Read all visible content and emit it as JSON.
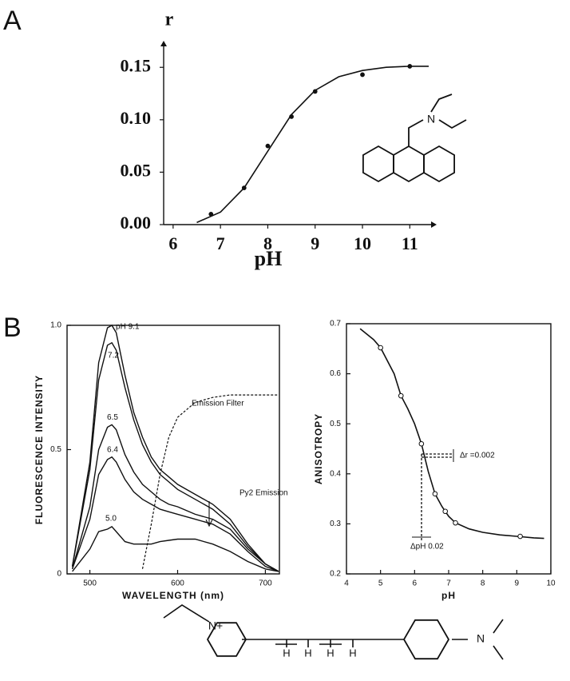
{
  "panels": [
    "A",
    "B"
  ],
  "structures": {
    "a": [
      "N"
    ],
    "b": [
      "N+",
      "H",
      "H",
      "H",
      "H",
      "N"
    ]
  },
  "chart_data": [
    {
      "type": "scatter",
      "frame": "axes",
      "xlabel": "pH",
      "ylabel": "r",
      "xlim": [
        5.8,
        11.45
      ],
      "ylim": [
        0,
        0.17
      ],
      "xticks": [
        6,
        7,
        8,
        9,
        10,
        11
      ],
      "yticks": [
        {
          "value": 0,
          "label": "0.00"
        },
        {
          "value": 0.05,
          "label": "0.05"
        },
        {
          "value": 0.1,
          "label": "0.10"
        },
        {
          "value": 0.15,
          "label": "0.15"
        }
      ],
      "x": [
        6.8,
        7.5,
        8,
        8.5,
        9,
        10,
        11
      ],
      "values": [
        0.01,
        0.035,
        0.075,
        0.103,
        0.127,
        0.143,
        0.151
      ],
      "curve": {
        "x": [
          6.5,
          7,
          7.5,
          8,
          8.5,
          9,
          9.5,
          10,
          10.5,
          11,
          11.4
        ],
        "values": [
          0.002,
          0.012,
          0.035,
          0.07,
          0.105,
          0.128,
          0.141,
          0.147,
          0.15,
          0.151,
          0.151
        ]
      },
      "color": "#111111"
    },
    {
      "type": "line",
      "frame": "box",
      "xlabel": "WAVELENGTH (nm)",
      "ylabel": "FLUORESCENCE  INTENSITY",
      "xlim": [
        474,
        716
      ],
      "ylim": [
        0,
        1.0
      ],
      "xticks": [
        500,
        600,
        700
      ],
      "yticks": [
        0,
        0.5,
        {
          "value": 1.0,
          "label": "1.0"
        }
      ],
      "x": [
        480,
        500,
        510,
        520,
        525,
        530,
        540,
        550,
        560,
        570,
        580,
        590,
        600,
        620,
        640,
        660,
        680,
        700,
        715
      ],
      "series": [
        {
          "name": "pH 9.1",
          "color": "#111111",
          "values": [
            0.03,
            0.45,
            0.85,
            0.99,
            1.0,
            0.97,
            0.8,
            0.65,
            0.55,
            0.47,
            0.42,
            0.39,
            0.36,
            0.32,
            0.28,
            0.22,
            0.12,
            0.04,
            0.01
          ]
        },
        {
          "name": "7.2",
          "color": "#111111",
          "values": [
            0.03,
            0.42,
            0.78,
            0.92,
            0.93,
            0.9,
            0.75,
            0.62,
            0.52,
            0.45,
            0.4,
            0.37,
            0.34,
            0.3,
            0.26,
            0.2,
            0.11,
            0.04,
            0.01
          ]
        },
        {
          "name": "6.5",
          "color": "#111111",
          "values": [
            0.02,
            0.27,
            0.5,
            0.59,
            0.6,
            0.58,
            0.48,
            0.41,
            0.36,
            0.33,
            0.3,
            0.28,
            0.27,
            0.24,
            0.22,
            0.18,
            0.1,
            0.04,
            0.01
          ]
        },
        {
          "name": "6.4",
          "color": "#111111",
          "values": [
            0.02,
            0.22,
            0.4,
            0.46,
            0.47,
            0.45,
            0.38,
            0.33,
            0.3,
            0.28,
            0.26,
            0.25,
            0.24,
            0.22,
            0.2,
            0.16,
            0.09,
            0.03,
            0.01
          ]
        },
        {
          "name": "5.0",
          "color": "#111111",
          "values": [
            0.01,
            0.1,
            0.17,
            0.18,
            0.19,
            0.17,
            0.13,
            0.12,
            0.12,
            0.12,
            0.13,
            0.135,
            0.14,
            0.14,
            0.12,
            0.09,
            0.05,
            0.02,
            0.01
          ]
        },
        {
          "name": "Emission Filter",
          "color": "#111111",
          "dashed": true,
          "values": [
            null,
            null,
            null,
            null,
            null,
            null,
            null,
            null,
            0.02,
            0.2,
            0.4,
            0.55,
            0.63,
            0.69,
            0.71,
            0.72,
            0.72,
            0.72,
            0.72
          ]
        }
      ],
      "annotations": [
        "Py2 Emission"
      ]
    },
    {
      "type": "scatter",
      "frame": "box",
      "xlabel": "pH",
      "ylabel": "ANISOTROPY",
      "xlim": [
        4,
        10
      ],
      "ylim": [
        0.2,
        0.7
      ],
      "xticks": [
        4,
        5,
        6,
        7,
        8,
        9,
        10
      ],
      "yticks": [
        0.2,
        0.3,
        0.4,
        0.5,
        0.6,
        0.7
      ],
      "x": [
        5,
        5.6,
        6.2,
        6.6,
        6.9,
        7.2,
        9.1
      ],
      "values": [
        0.652,
        0.556,
        0.46,
        0.36,
        0.325,
        0.302,
        0.275
      ],
      "curve": {
        "x": [
          4.4,
          4.8,
          5,
          5.4,
          5.6,
          5.8,
          6,
          6.2,
          6.4,
          6.6,
          6.8,
          7,
          7.2,
          7.6,
          8,
          8.5,
          9,
          9.5,
          9.8
        ],
        "values": [
          0.69,
          0.668,
          0.652,
          0.6,
          0.556,
          0.53,
          0.5,
          0.46,
          0.405,
          0.36,
          0.335,
          0.315,
          0.302,
          0.29,
          0.283,
          0.278,
          0.275,
          0.272,
          0.271
        ]
      },
      "color": "#111111",
      "markers": "open",
      "annotations": [
        "Δr =0.002",
        "ΔpH  0.02"
      ]
    }
  ]
}
